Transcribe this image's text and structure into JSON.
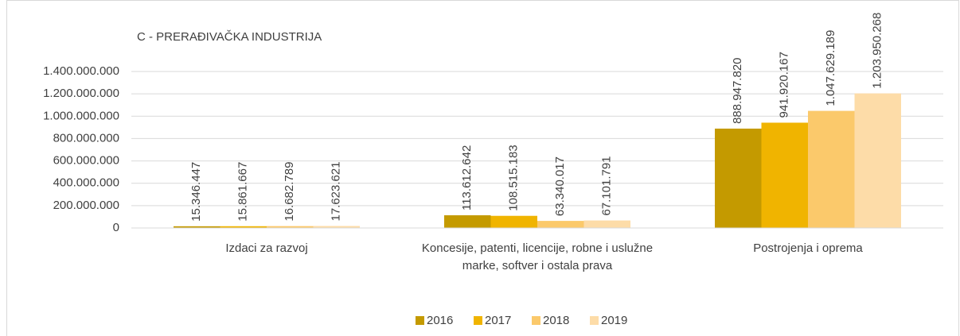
{
  "chart_data": {
    "type": "bar",
    "title": "C - PRERAĐIVAČKA INDUSTRIJA",
    "categories": [
      "Izdaci za razvoj",
      "Koncesije, patenti, licencije, robne i uslužne marke, softver i ostala prava",
      "Postrojenja i oprema"
    ],
    "series": [
      {
        "name": "2016",
        "color": "#c49a00",
        "values": [
          15346447,
          113612642,
          888947820
        ],
        "value_labels": [
          "15.346.447",
          "113.612.642",
          "888.947.820"
        ]
      },
      {
        "name": "2017",
        "color": "#f0b400",
        "values": [
          15861667,
          108515183,
          941920167
        ],
        "value_labels": [
          "15.861.667",
          "108.515.183",
          "941.920.167"
        ]
      },
      {
        "name": "2018",
        "color": "#fbc96b",
        "values": [
          16682789,
          63340017,
          1047629189
        ],
        "value_labels": [
          "16.682.789",
          "63.340.017",
          "1.047.629.189"
        ]
      },
      {
        "name": "2019",
        "color": "#fddca8",
        "values": [
          17623621,
          67101791,
          1203950268
        ],
        "value_labels": [
          "17.623.621",
          "67.101.791",
          "1.203.950.268"
        ]
      }
    ],
    "ylim": [
      0,
      1400000000
    ],
    "yticks": [
      0,
      {
        "value": 200000000,
        "label": "200.000.000"
      },
      {
        "value": 400000000,
        "label": "400.000.000"
      },
      {
        "value": 600000000,
        "label": "600.000.000"
      },
      {
        "value": 800000000,
        "label": "800.000.000"
      },
      {
        "value": 1000000000,
        "label": "1.000.000.000"
      },
      {
        "value": 1200000000,
        "label": "1.200.000.000"
      },
      {
        "value": 1400000000,
        "label": "1.400.000.000"
      }
    ],
    "grid": true,
    "legend": "bottom"
  }
}
